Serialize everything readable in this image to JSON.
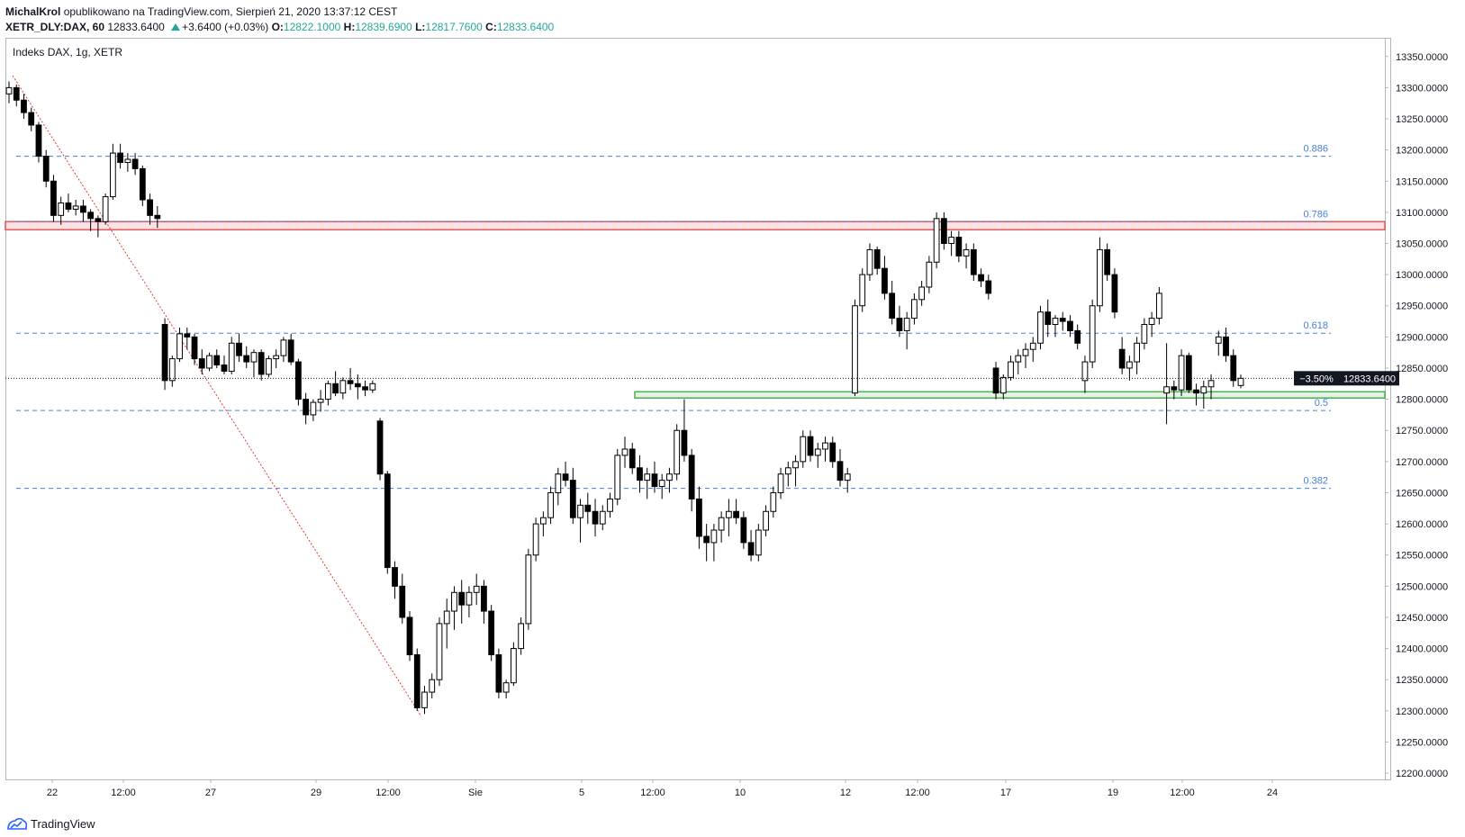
{
  "header": {
    "author": "MichalKrol",
    "published": "opublikowano na TradingView.com, Sierpień 21, 2020 13:37:12 CEST",
    "symbol": "XETR_DLY:DAX, 60",
    "last": "12833.6400",
    "change": "+3.6400 (+0.03%)",
    "o_label": "O:",
    "o": "12822.1000",
    "h_label": "H:",
    "h": "12839.6900",
    "l_label": "L:",
    "l": "12817.7600",
    "c_label": "C:",
    "c": "12833.6400"
  },
  "chart_title": "Indeks DAX, 1g, XETR",
  "footer": {
    "brand": "TradingView",
    "logo_icon": "tradingview-logo-icon"
  },
  "colors": {
    "candle": "#000000",
    "fib": "#4a7fd9",
    "resistance": "#e25b5b",
    "support": "#4caf50",
    "trend": "#e53935"
  },
  "chart_data": {
    "type": "candlestick",
    "title": "Indeks DAX, 1g, XETR",
    "timeframe": "60",
    "y_axis": {
      "position": "right",
      "ylim": [
        12190,
        13380
      ],
      "ticks": [
        "13350.0000",
        "13300.0000",
        "13250.0000",
        "13200.0000",
        "13150.0000",
        "13100.0000",
        "13050.0000",
        "13000.0000",
        "12950.0000",
        "12900.0000",
        "12850.0000",
        "12800.0000",
        "12750.0000",
        "12700.0000",
        "12650.0000",
        "12600.0000",
        "12550.0000",
        "12500.0000",
        "12450.0000",
        "12400.0000",
        "12350.0000",
        "12300.0000",
        "12250.0000",
        "12200.0000"
      ]
    },
    "x_axis": {
      "ticks": [
        "22",
        "12:00",
        "27",
        "29",
        "12:00",
        "Sie",
        "5",
        "12:00",
        "10",
        "12",
        "12:00",
        "17",
        "19",
        "12:00",
        "24"
      ]
    },
    "current_price": {
      "value": 12833.64,
      "label": "12833.6400",
      "change_label": "−3.50%"
    },
    "fib_levels": [
      {
        "label": "0.886",
        "value": 13190
      },
      {
        "label": "0.786",
        "value": 13085
      },
      {
        "label": "0.618",
        "value": 12906
      },
      {
        "label": "0.5",
        "value": 12782
      },
      {
        "label": "0.382",
        "value": 12657
      }
    ],
    "zones": [
      {
        "name": "resistance",
        "from": 13072,
        "to": 13085
      },
      {
        "name": "support",
        "from": 12802,
        "to": 12812
      }
    ],
    "trendline": {
      "from": {
        "t": 1,
        "v": 13320
      },
      "to": {
        "t": 70,
        "v": 12252
      }
    },
    "candles": [
      [
        13290,
        13310,
        13275,
        13300
      ],
      [
        13300,
        13305,
        13270,
        13280
      ],
      [
        13280,
        13290,
        13250,
        13260
      ],
      [
        13260,
        13268,
        13230,
        13240
      ],
      [
        13240,
        13245,
        13180,
        13190
      ],
      [
        13190,
        13200,
        13140,
        13150
      ],
      [
        13150,
        13160,
        13085,
        13095
      ],
      [
        13095,
        13125,
        13080,
        13115
      ],
      [
        13115,
        13130,
        13100,
        13105
      ],
      [
        13105,
        13120,
        13095,
        13110
      ],
      [
        13110,
        13120,
        13085,
        13100
      ],
      [
        13100,
        13105,
        13070,
        13090
      ],
      [
        13090,
        13095,
        13060,
        13085
      ],
      [
        13085,
        13130,
        13080,
        13125
      ],
      [
        13125,
        13210,
        13120,
        13195
      ],
      [
        13195,
        13210,
        13170,
        13180
      ],
      [
        13180,
        13195,
        13165,
        13185
      ],
      [
        13185,
        13195,
        13160,
        13170
      ],
      [
        13170,
        13175,
        13110,
        13120
      ],
      [
        13120,
        13130,
        13080,
        13095
      ],
      [
        13095,
        13110,
        13075,
        13090
      ],
      [
        12920,
        12930,
        12815,
        12830
      ],
      [
        12830,
        12870,
        12820,
        12865
      ],
      [
        12865,
        12915,
        12860,
        12905
      ],
      [
        12905,
        12915,
        12880,
        12900
      ],
      [
        12900,
        12905,
        12855,
        12865
      ],
      [
        12865,
        12880,
        12840,
        12850
      ],
      [
        12850,
        12875,
        12845,
        12870
      ],
      [
        12870,
        12880,
        12850,
        12855
      ],
      [
        12855,
        12870,
        12840,
        12845
      ],
      [
        12845,
        12900,
        12840,
        12890
      ],
      [
        12890,
        12905,
        12860,
        12870
      ],
      [
        12870,
        12885,
        12850,
        12860
      ],
      [
        12860,
        12880,
        12835,
        12875
      ],
      [
        12875,
        12880,
        12830,
        12840
      ],
      [
        12840,
        12870,
        12835,
        12865
      ],
      [
        12865,
        12880,
        12850,
        12870
      ],
      [
        12870,
        12900,
        12860,
        12895
      ],
      [
        12895,
        12905,
        12855,
        12860
      ],
      [
        12860,
        12865,
        12790,
        12800
      ],
      [
        12800,
        12810,
        12760,
        12775
      ],
      [
        12775,
        12800,
        12765,
        12795
      ],
      [
        12795,
        12815,
        12780,
        12800
      ],
      [
        12800,
        12830,
        12790,
        12825
      ],
      [
        12825,
        12845,
        12805,
        12810
      ],
      [
        12810,
        12835,
        12800,
        12830
      ],
      [
        12830,
        12850,
        12815,
        12825
      ],
      [
        12825,
        12840,
        12800,
        12820
      ],
      [
        12820,
        12830,
        12805,
        12815
      ],
      [
        12815,
        12830,
        12810,
        12825
      ],
      [
        12765,
        12770,
        12670,
        12680
      ],
      [
        12680,
        12685,
        12520,
        12530
      ],
      [
        12530,
        12540,
        12480,
        12500
      ],
      [
        12500,
        12520,
        12440,
        12450
      ],
      [
        12450,
        12460,
        12380,
        12390
      ],
      [
        12390,
        12400,
        12300,
        12305
      ],
      [
        12305,
        12340,
        12295,
        12330
      ],
      [
        12330,
        12360,
        12320,
        12350
      ],
      [
        12350,
        12450,
        12340,
        12440
      ],
      [
        12440,
        12480,
        12400,
        12460
      ],
      [
        12460,
        12500,
        12430,
        12490
      ],
      [
        12490,
        12510,
        12440,
        12470
      ],
      [
        12470,
        12500,
        12450,
        12490
      ],
      [
        12490,
        12520,
        12470,
        12500
      ],
      [
        12500,
        12510,
        12440,
        12460
      ],
      [
        12460,
        12470,
        12380,
        12390
      ],
      [
        12390,
        12400,
        12320,
        12330
      ],
      [
        12330,
        12350,
        12320,
        12345
      ],
      [
        12345,
        12410,
        12340,
        12400
      ],
      [
        12400,
        12450,
        12390,
        12440
      ],
      [
        12440,
        12560,
        12430,
        12550
      ],
      [
        12550,
        12610,
        12540,
        12600
      ],
      [
        12600,
        12620,
        12580,
        12610
      ],
      [
        12610,
        12660,
        12600,
        12650
      ],
      [
        12650,
        12690,
        12630,
        12680
      ],
      [
        12680,
        12700,
        12660,
        12670
      ],
      [
        12670,
        12690,
        12600,
        12610
      ],
      [
        12610,
        12640,
        12570,
        12630
      ],
      [
        12630,
        12650,
        12600,
        12620
      ],
      [
        12620,
        12640,
        12580,
        12600
      ],
      [
        12600,
        12630,
        12590,
        12620
      ],
      [
        12620,
        12650,
        12610,
        12640
      ],
      [
        12640,
        12720,
        12630,
        12710
      ],
      [
        12710,
        12740,
        12690,
        12720
      ],
      [
        12720,
        12730,
        12680,
        12690
      ],
      [
        12690,
        12710,
        12650,
        12670
      ],
      [
        12670,
        12690,
        12640,
        12680
      ],
      [
        12680,
        12700,
        12650,
        12660
      ],
      [
        12660,
        12680,
        12640,
        12670
      ],
      [
        12670,
        12690,
        12650,
        12680
      ],
      [
        12680,
        12760,
        12670,
        12750
      ],
      [
        12750,
        12800,
        12700,
        12710
      ],
      [
        12710,
        12720,
        12620,
        12640
      ],
      [
        12640,
        12660,
        12560,
        12580
      ],
      [
        12580,
        12600,
        12540,
        12570
      ],
      [
        12570,
        12600,
        12540,
        12590
      ],
      [
        12590,
        12620,
        12570,
        12610
      ],
      [
        12610,
        12640,
        12580,
        12620
      ],
      [
        12620,
        12640,
        12600,
        12610
      ],
      [
        12610,
        12620,
        12560,
        12570
      ],
      [
        12570,
        12590,
        12540,
        12550
      ],
      [
        12550,
        12600,
        12540,
        12590
      ],
      [
        12590,
        12630,
        12580,
        12620
      ],
      [
        12620,
        12660,
        12610,
        12650
      ],
      [
        12650,
        12690,
        12640,
        12680
      ],
      [
        12680,
        12700,
        12660,
        12690
      ],
      [
        12690,
        12710,
        12660,
        12700
      ],
      [
        12700,
        12750,
        12690,
        12740
      ],
      [
        12740,
        12750,
        12700,
        12710
      ],
      [
        12710,
        12730,
        12690,
        12720
      ],
      [
        12720,
        12740,
        12700,
        12730
      ],
      [
        12730,
        12740,
        12690,
        12700
      ],
      [
        12700,
        12720,
        12660,
        12670
      ],
      [
        12670,
        12690,
        12650,
        12680
      ],
      [
        12810,
        12960,
        12805,
        12950
      ],
      [
        12950,
        13010,
        12940,
        13000
      ],
      [
        13000,
        13050,
        12990,
        13040
      ],
      [
        13040,
        13045,
        13000,
        13010
      ],
      [
        13010,
        13030,
        12960,
        12970
      ],
      [
        12970,
        12990,
        12920,
        12930
      ],
      [
        12930,
        12950,
        12900,
        12910
      ],
      [
        12910,
        12940,
        12880,
        12930
      ],
      [
        12930,
        12970,
        12920,
        12960
      ],
      [
        12960,
        12990,
        12950,
        12980
      ],
      [
        12980,
        13030,
        12970,
        13020
      ],
      [
        13020,
        13100,
        13010,
        13090
      ],
      [
        13090,
        13100,
        13040,
        13050
      ],
      [
        13050,
        13070,
        13030,
        13060
      ],
      [
        13060,
        13070,
        13020,
        13030
      ],
      [
        13030,
        13050,
        13010,
        13040
      ],
      [
        13040,
        13050,
        12990,
        13000
      ],
      [
        13000,
        13010,
        12980,
        12990
      ],
      [
        12990,
        13000,
        12960,
        12970
      ],
      [
        12850,
        12860,
        12800,
        12810
      ],
      [
        12810,
        12840,
        12800,
        12835
      ],
      [
        12835,
        12870,
        12830,
        12860
      ],
      [
        12860,
        12880,
        12840,
        12870
      ],
      [
        12870,
        12890,
        12850,
        12880
      ],
      [
        12880,
        12900,
        12860,
        12890
      ],
      [
        12890,
        12950,
        12880,
        12940
      ],
      [
        12940,
        12960,
        12900,
        12920
      ],
      [
        12920,
        12935,
        12900,
        12930
      ],
      [
        12930,
        12940,
        12910,
        12925
      ],
      [
        12925,
        12935,
        12900,
        12910
      ],
      [
        12910,
        12920,
        12880,
        12890
      ],
      [
        12830,
        12870,
        12810,
        12860
      ],
      [
        12860,
        12960,
        12850,
        12950
      ],
      [
        12950,
        13060,
        12940,
        13040
      ],
      [
        13040,
        13050,
        12990,
        13000
      ],
      [
        13000,
        13010,
        12930,
        12940
      ],
      [
        12880,
        12900,
        12840,
        12850
      ],
      [
        12850,
        12870,
        12830,
        12860
      ],
      [
        12860,
        12900,
        12840,
        12890
      ],
      [
        12890,
        12930,
        12880,
        12920
      ],
      [
        12920,
        12940,
        12900,
        12930
      ],
      [
        12930,
        12980,
        12920,
        12970
      ],
      [
        12810,
        12890,
        12760,
        12820
      ],
      [
        12820,
        12830,
        12800,
        12815
      ],
      [
        12815,
        12880,
        12805,
        12870
      ],
      [
        12870,
        12875,
        12810,
        12815
      ],
      [
        12815,
        12825,
        12790,
        12810
      ],
      [
        12810,
        12830,
        12785,
        12820
      ],
      [
        12820,
        12840,
        12800,
        12830
      ],
      [
        12890,
        12910,
        12870,
        12900
      ],
      [
        12900,
        12915,
        12860,
        12870
      ],
      [
        12870,
        12880,
        12820,
        12830
      ],
      [
        12822.1,
        12839.69,
        12817.76,
        12833.64
      ]
    ]
  }
}
